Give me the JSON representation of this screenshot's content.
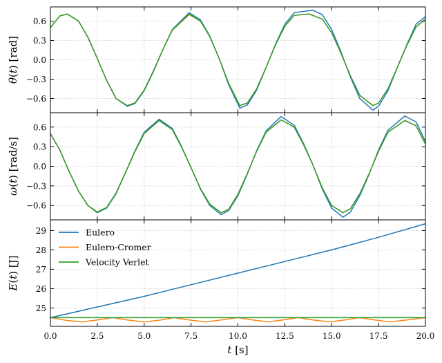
{
  "chart_data": [
    {
      "type": "line",
      "panel": "theta",
      "ylabel": "θ(t) [rad]",
      "xlabel": "",
      "xlim": [
        0,
        20
      ],
      "ylim": [
        -0.82,
        0.82
      ],
      "yticks": [
        -0.6,
        -0.3,
        0.0,
        0.3,
        0.6
      ],
      "ytick_labels": [
        "−0.6",
        "−0.3",
        "0.0",
        "0.3",
        "0.6"
      ],
      "grid": true,
      "series": [
        {
          "name": "Eulero",
          "color": "#1f77b4",
          "x": [
            0,
            0.5,
            0.9,
            1.5,
            2,
            2.5,
            3,
            3.5,
            4.1,
            4.5,
            5,
            5.5,
            6,
            6.5,
            7.4,
            8,
            8.5,
            9,
            9.5,
            10.1,
            10.5,
            11,
            11.5,
            12,
            12.5,
            13,
            14,
            14.5,
            15,
            15.5,
            16,
            16.5,
            17.2,
            17.5,
            18,
            18.5,
            19,
            19.5,
            20
          ],
          "y": [
            0.5,
            0.68,
            0.71,
            0.6,
            0.35,
            0.02,
            -0.32,
            -0.6,
            -0.72,
            -0.68,
            -0.48,
            -0.18,
            0.16,
            0.47,
            0.73,
            0.62,
            0.37,
            0.02,
            -0.38,
            -0.75,
            -0.7,
            -0.47,
            -0.12,
            0.24,
            0.55,
            0.73,
            0.77,
            0.7,
            0.47,
            0.12,
            -0.27,
            -0.6,
            -0.78,
            -0.72,
            -0.48,
            -0.12,
            0.23,
            0.55,
            0.67
          ]
        },
        {
          "name": "Eulero-Cromer",
          "color": "#ff7f0e",
          "x": [
            0,
            0.5,
            0.9,
            1.5,
            2,
            2.5,
            3,
            3.5,
            4.1,
            4.5,
            5,
            5.5,
            6,
            6.5,
            7.4,
            8,
            8.5,
            9,
            9.5,
            10.1,
            10.5,
            11,
            11.5,
            12,
            12.5,
            13,
            13.8,
            14.5,
            15,
            15.5,
            16,
            16.5,
            17.2,
            17.5,
            18,
            18.5,
            19,
            19.5,
            20
          ],
          "y": [
            0.5,
            0.68,
            0.71,
            0.6,
            0.35,
            0.02,
            -0.32,
            -0.6,
            -0.71,
            -0.67,
            -0.47,
            -0.17,
            0.16,
            0.46,
            0.7,
            0.6,
            0.36,
            0.02,
            -0.36,
            -0.71,
            -0.67,
            -0.45,
            -0.12,
            0.23,
            0.52,
            0.69,
            0.71,
            0.63,
            0.42,
            0.1,
            -0.25,
            -0.55,
            -0.71,
            -0.67,
            -0.45,
            -0.12,
            0.22,
            0.51,
            0.63
          ]
        },
        {
          "name": "Velocity Verlet",
          "color": "#2ca02c",
          "x": [
            0,
            0.5,
            0.9,
            1.5,
            2,
            2.5,
            3,
            3.5,
            4.1,
            4.5,
            5,
            5.5,
            6,
            6.5,
            7.4,
            8,
            8.5,
            9,
            9.5,
            10.1,
            10.5,
            11,
            11.5,
            12,
            12.5,
            13,
            13.8,
            14.5,
            15,
            15.5,
            16,
            16.5,
            17.2,
            17.5,
            18,
            18.5,
            19,
            19.5,
            20
          ],
          "y": [
            0.5,
            0.68,
            0.71,
            0.6,
            0.35,
            0.02,
            -0.32,
            -0.6,
            -0.71,
            -0.67,
            -0.47,
            -0.17,
            0.16,
            0.46,
            0.71,
            0.6,
            0.36,
            0.02,
            -0.36,
            -0.71,
            -0.67,
            -0.45,
            -0.12,
            0.23,
            0.52,
            0.69,
            0.71,
            0.63,
            0.42,
            0.1,
            -0.25,
            -0.55,
            -0.71,
            -0.67,
            -0.45,
            -0.12,
            0.22,
            0.51,
            0.63
          ]
        }
      ]
    },
    {
      "type": "line",
      "panel": "omega",
      "ylabel": "ω(t) [rad/s]",
      "xlabel": "",
      "xlim": [
        0,
        20
      ],
      "ylim": [
        -0.82,
        0.82
      ],
      "yticks": [
        -0.6,
        -0.3,
        0.0,
        0.3,
        0.6
      ],
      "ytick_labels": [
        "−0.6",
        "−0.3",
        "0.0",
        "0.3",
        "0.6"
      ],
      "grid": true,
      "series": [
        {
          "name": "Eulero",
          "color": "#1f77b4",
          "x": [
            0,
            0.5,
            1,
            1.5,
            2,
            2.5,
            3,
            3.5,
            4,
            4.5,
            5,
            5.8,
            6.5,
            7,
            7.5,
            8,
            8.5,
            9.1,
            9.5,
            10,
            10.5,
            11,
            11.5,
            12.3,
            13,
            13.5,
            14,
            14.5,
            15,
            15.6,
            16,
            16.5,
            17,
            17.5,
            18,
            18.9,
            19.5,
            20
          ],
          "y": [
            0.5,
            0.25,
            -0.08,
            -0.38,
            -0.6,
            -0.71,
            -0.64,
            -0.42,
            -0.1,
            0.23,
            0.52,
            0.72,
            0.58,
            0.3,
            -0.02,
            -0.35,
            -0.6,
            -0.74,
            -0.68,
            -0.45,
            -0.12,
            0.24,
            0.54,
            0.76,
            0.63,
            0.35,
            0.02,
            -0.35,
            -0.64,
            -0.78,
            -0.7,
            -0.45,
            -0.12,
            0.25,
            0.55,
            0.77,
            0.68,
            0.38
          ]
        },
        {
          "name": "Eulero-Cromer",
          "color": "#ff7f0e",
          "x": [
            0,
            0.5,
            1,
            1.5,
            2,
            2.5,
            3,
            3.5,
            4,
            4.5,
            5,
            5.8,
            6.5,
            7,
            7.5,
            8,
            8.5,
            9.1,
            9.5,
            10,
            10.5,
            11,
            11.5,
            12.3,
            13,
            13.5,
            14,
            14.5,
            15,
            15.6,
            16,
            16.5,
            17,
            17.5,
            18,
            18.9,
            19.5,
            20
          ],
          "y": [
            0.5,
            0.25,
            -0.08,
            -0.38,
            -0.6,
            -0.7,
            -0.63,
            -0.41,
            -0.1,
            0.22,
            0.5,
            0.7,
            0.56,
            0.29,
            -0.02,
            -0.34,
            -0.58,
            -0.71,
            -0.66,
            -0.43,
            -0.11,
            0.23,
            0.52,
            0.71,
            0.6,
            0.33,
            0.02,
            -0.33,
            -0.6,
            -0.71,
            -0.65,
            -0.42,
            -0.11,
            0.23,
            0.52,
            0.7,
            0.62,
            0.34
          ]
        },
        {
          "name": "Velocity Verlet",
          "color": "#2ca02c",
          "x": [
            0,
            0.5,
            1,
            1.5,
            2,
            2.5,
            3,
            3.5,
            4,
            4.5,
            5,
            5.8,
            6.5,
            7,
            7.5,
            8,
            8.5,
            9.1,
            9.5,
            10,
            10.5,
            11,
            11.5,
            12.3,
            13,
            13.5,
            14,
            14.5,
            15,
            15.6,
            16,
            16.5,
            17,
            17.5,
            18,
            18.9,
            19.5,
            20
          ],
          "y": [
            0.5,
            0.25,
            -0.08,
            -0.38,
            -0.6,
            -0.7,
            -0.63,
            -0.41,
            -0.1,
            0.22,
            0.5,
            0.7,
            0.56,
            0.29,
            -0.02,
            -0.34,
            -0.58,
            -0.71,
            -0.66,
            -0.43,
            -0.11,
            0.23,
            0.52,
            0.71,
            0.6,
            0.33,
            0.02,
            -0.33,
            -0.6,
            -0.71,
            -0.65,
            -0.42,
            -0.11,
            0.23,
            0.52,
            0.7,
            0.62,
            0.34
          ]
        }
      ]
    },
    {
      "type": "line",
      "panel": "energy",
      "ylabel": "E(t) [J]",
      "xlabel": "t [s]",
      "xlim": [
        0,
        20
      ],
      "ylim": [
        24.05,
        29.55
      ],
      "xticks": [
        0,
        2.5,
        5,
        7.5,
        10,
        12.5,
        15,
        17.5,
        20
      ],
      "xtick_labels": [
        "0.0",
        "2.5",
        "5.0",
        "7.5",
        "10.0",
        "12.5",
        "15.0",
        "17.5",
        "20.0"
      ],
      "yticks": [
        25,
        26,
        27,
        28,
        29
      ],
      "ytick_labels": [
        "25",
        "26",
        "27",
        "28",
        "29"
      ],
      "grid": true,
      "legend": "top-left",
      "series": [
        {
          "name": "Eulero",
          "color": "#1f77b4",
          "x": [
            0,
            2.5,
            5,
            7.5,
            10,
            12.5,
            15,
            17.5,
            20
          ],
          "y": [
            24.5,
            25.05,
            25.6,
            26.2,
            26.8,
            27.4,
            28.0,
            28.65,
            29.35
          ]
        },
        {
          "name": "Eulero-Cromer",
          "color": "#ff7f0e",
          "x": [
            0,
            0.85,
            1.7,
            2.5,
            3.3,
            4.1,
            5.0,
            5.9,
            6.6,
            7.4,
            8.3,
            9.1,
            10.0,
            10.8,
            11.6,
            12.4,
            13.2,
            14.0,
            14.9,
            15.7,
            16.5,
            17.3,
            18.1,
            19.0,
            20.0
          ],
          "y": [
            24.5,
            24.36,
            24.28,
            24.38,
            24.5,
            24.38,
            24.28,
            24.38,
            24.5,
            24.38,
            24.28,
            24.38,
            24.5,
            24.38,
            24.28,
            24.38,
            24.5,
            24.38,
            24.28,
            24.38,
            24.5,
            24.38,
            24.28,
            24.38,
            24.5
          ]
        },
        {
          "name": "Velocity Verlet",
          "color": "#2ca02c",
          "x": [
            0,
            20
          ],
          "y": [
            24.5,
            24.5
          ]
        }
      ]
    }
  ]
}
